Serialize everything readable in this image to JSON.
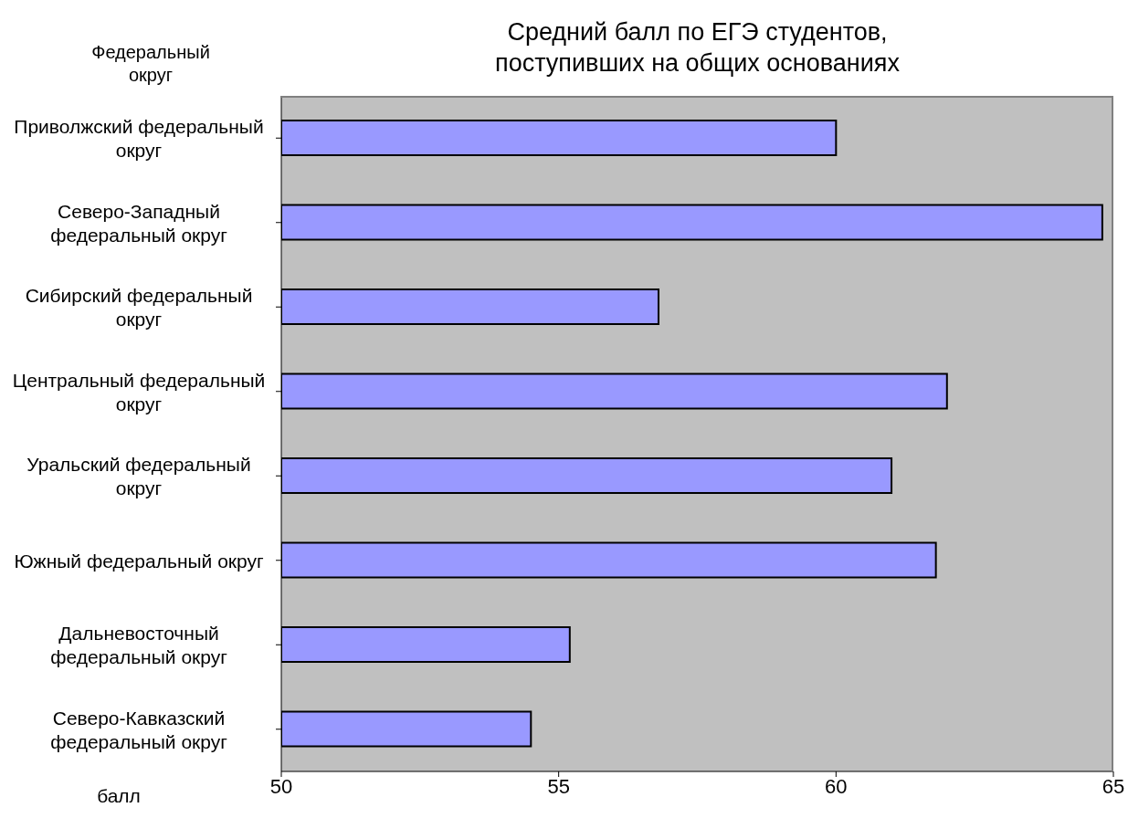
{
  "chart_data": {
    "type": "bar",
    "orientation": "horizontal",
    "title": "Средний балл по ЕГЭ студентов, поступивших на общих основаниях",
    "ylabel": "Федеральный округ",
    "xlabel": "балл",
    "categories": [
      "Приволжский федеральный округ",
      "Северо-Западный федеральный округ",
      "Сибирский федеральный округ",
      "Центральный федеральный округ",
      "Уральский федеральный округ",
      "Южный федеральный округ",
      "Дальневосточный федеральный округ",
      "Северо-Кавказский федеральный округ"
    ],
    "values": [
      60.0,
      64.8,
      56.8,
      62.0,
      61.0,
      61.8,
      55.2,
      54.5
    ],
    "color": "#9999ff",
    "xlim": [
      50,
      65
    ],
    "xticks": [
      50,
      55,
      60,
      65
    ],
    "grid": false,
    "legend": false
  }
}
